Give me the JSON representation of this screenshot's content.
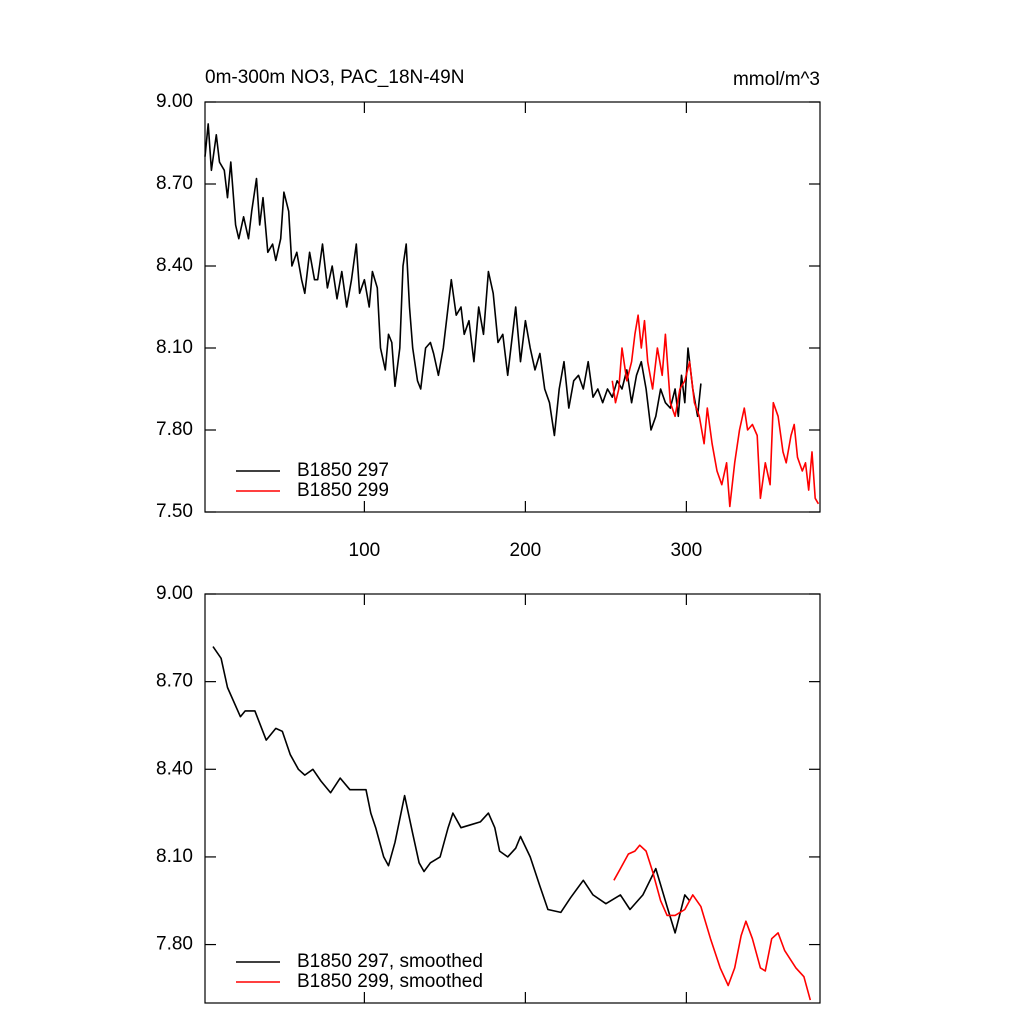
{
  "chart_data": [
    {
      "type": "line",
      "title": "0m-300m NO3, PAC_18N-49N",
      "units": "mmol/m^3",
      "xlim": [
        1,
        383
      ],
      "xticks": [
        100,
        200,
        300
      ],
      "ylim": [
        7.5,
        9.0
      ],
      "yticks": [
        {
          "value": 9.0,
          "label": "9.00"
        },
        {
          "value": 8.7,
          "label": "8.70"
        },
        {
          "value": 8.4,
          "label": "8.40"
        },
        {
          "value": 8.1,
          "label": "8.10"
        },
        {
          "value": 7.8,
          "label": "7.80"
        },
        {
          "value": 7.5,
          "label": "7.50"
        }
      ],
      "legend": "lower left",
      "series": [
        {
          "name": "B1850 297",
          "color": "#000000",
          "x": [
            1,
            3,
            5,
            8,
            10,
            13,
            15,
            17,
            20,
            22,
            25,
            28,
            30,
            33,
            35,
            37,
            40,
            43,
            45,
            48,
            50,
            53,
            55,
            58,
            61,
            63,
            66,
            69,
            71,
            74,
            77,
            80,
            83,
            86,
            89,
            92,
            95,
            97,
            100,
            103,
            105,
            108,
            110,
            113,
            115,
            117,
            119,
            122,
            124,
            126,
            128,
            130,
            133,
            135,
            138,
            141,
            143,
            146,
            149,
            152,
            154,
            157,
            160,
            162,
            165,
            168,
            171,
            174,
            177,
            180,
            183,
            186,
            189,
            191,
            194,
            197,
            200,
            203,
            206,
            209,
            212,
            215,
            218,
            221,
            224,
            227,
            230,
            233,
            236,
            239,
            242,
            245,
            248,
            251,
            254,
            257,
            260,
            263,
            266,
            269,
            272,
            275,
            278,
            281,
            284,
            287,
            290,
            293,
            295,
            297,
            299,
            301,
            304,
            307,
            309
          ],
          "values": [
            8.8,
            8.92,
            8.75,
            8.88,
            8.78,
            8.75,
            8.65,
            8.78,
            8.55,
            8.5,
            8.58,
            8.5,
            8.6,
            8.72,
            8.55,
            8.65,
            8.45,
            8.48,
            8.42,
            8.5,
            8.67,
            8.6,
            8.4,
            8.45,
            8.35,
            8.3,
            8.45,
            8.35,
            8.35,
            8.48,
            8.32,
            8.4,
            8.28,
            8.38,
            8.25,
            8.35,
            8.48,
            8.3,
            8.35,
            8.25,
            8.38,
            8.32,
            8.1,
            8.02,
            8.15,
            8.12,
            7.96,
            8.1,
            8.4,
            8.48,
            8.25,
            8.1,
            7.98,
            7.95,
            8.1,
            8.12,
            8.08,
            8.0,
            8.1,
            8.25,
            8.35,
            8.22,
            8.25,
            8.15,
            8.2,
            8.05,
            8.25,
            8.15,
            8.38,
            8.3,
            8.12,
            8.15,
            8.0,
            8.1,
            8.25,
            8.05,
            8.2,
            8.1,
            8.02,
            8.08,
            7.95,
            7.9,
            7.78,
            7.95,
            8.05,
            7.88,
            7.98,
            8.0,
            7.95,
            8.05,
            7.92,
            7.95,
            7.9,
            7.95,
            7.92,
            7.98,
            7.95,
            8.02,
            7.9,
            8.0,
            8.05,
            7.95,
            7.8,
            7.85,
            7.95,
            7.9,
            7.88,
            7.95,
            7.85,
            8.0,
            7.9,
            8.1,
            7.95,
            7.85,
            7.97
          ]
        },
        {
          "name": "B1850 299",
          "color": "#ff0000",
          "x": [
            254,
            256,
            258,
            260,
            263,
            266,
            268,
            270,
            272,
            274,
            276,
            279,
            282,
            285,
            287,
            290,
            293,
            296,
            299,
            302,
            305,
            308,
            311,
            313,
            316,
            319,
            322,
            325,
            327,
            330,
            333,
            336,
            338,
            341,
            344,
            346,
            349,
            352,
            354,
            357,
            360,
            362,
            365,
            367,
            369,
            372,
            374,
            376,
            378,
            380,
            382
          ],
          "values": [
            7.98,
            7.9,
            7.95,
            8.1,
            7.98,
            8.05,
            8.15,
            8.22,
            8.1,
            8.2,
            8.05,
            7.95,
            8.1,
            8.0,
            8.15,
            7.9,
            7.85,
            7.95,
            7.98,
            8.05,
            7.9,
            7.85,
            7.75,
            7.88,
            7.75,
            7.65,
            7.6,
            7.68,
            7.52,
            7.68,
            7.8,
            7.88,
            7.8,
            7.82,
            7.78,
            7.55,
            7.68,
            7.6,
            7.9,
            7.85,
            7.72,
            7.68,
            7.78,
            7.82,
            7.7,
            7.65,
            7.68,
            7.58,
            7.72,
            7.55,
            7.53
          ]
        }
      ]
    },
    {
      "type": "line",
      "xlim": [
        1,
        383
      ],
      "ylim": [
        7.6,
        9.0
      ],
      "yticks": [
        {
          "value": 9.0,
          "label": "9.00"
        },
        {
          "value": 8.7,
          "label": "8.70"
        },
        {
          "value": 8.4,
          "label": "8.40"
        },
        {
          "value": 8.1,
          "label": "8.10"
        },
        {
          "value": 7.8,
          "label": "7.80"
        }
      ],
      "legend": "lower left",
      "series": [
        {
          "name": "B1850 297, smoothed",
          "color": "#000000",
          "x": [
            6,
            11,
            15,
            23,
            26,
            32,
            39,
            45,
            49,
            54,
            59,
            63,
            68,
            73,
            79,
            85,
            91,
            98,
            101,
            104,
            107,
            112,
            115,
            119,
            125,
            130,
            134,
            137,
            141,
            147,
            152,
            155,
            160,
            166,
            172,
            177,
            181,
            184,
            189,
            194,
            197,
            203,
            209,
            214,
            222,
            228,
            236,
            242,
            250,
            259,
            265,
            273,
            281,
            288,
            293,
            299,
            302
          ],
          "values": [
            8.82,
            8.78,
            8.68,
            8.58,
            8.6,
            8.6,
            8.5,
            8.54,
            8.53,
            8.45,
            8.4,
            8.38,
            8.4,
            8.36,
            8.32,
            8.37,
            8.33,
            8.33,
            8.33,
            8.25,
            8.2,
            8.1,
            8.07,
            8.15,
            8.31,
            8.18,
            8.08,
            8.05,
            8.08,
            8.1,
            8.2,
            8.25,
            8.2,
            8.21,
            8.22,
            8.25,
            8.2,
            8.12,
            8.1,
            8.13,
            8.17,
            8.1,
            8.0,
            7.92,
            7.91,
            7.96,
            8.02,
            7.97,
            7.94,
            7.97,
            7.92,
            7.97,
            8.06,
            7.93,
            7.84,
            7.97,
            7.95
          ]
        },
        {
          "name": "B1850 299, smoothed",
          "color": "#ff0000",
          "x": [
            255,
            259,
            264,
            268,
            271,
            275,
            279,
            284,
            288,
            293,
            299,
            304,
            309,
            315,
            321,
            326,
            330,
            334,
            337,
            341,
            346,
            349,
            353,
            357,
            361,
            368,
            373,
            377
          ],
          "values": [
            8.02,
            8.06,
            8.11,
            8.12,
            8.14,
            8.12,
            8.05,
            7.95,
            7.9,
            7.9,
            7.92,
            7.97,
            7.93,
            7.82,
            7.72,
            7.66,
            7.72,
            7.83,
            7.88,
            7.82,
            7.72,
            7.71,
            7.82,
            7.84,
            7.78,
            7.72,
            7.69,
            7.61
          ]
        }
      ]
    }
  ]
}
